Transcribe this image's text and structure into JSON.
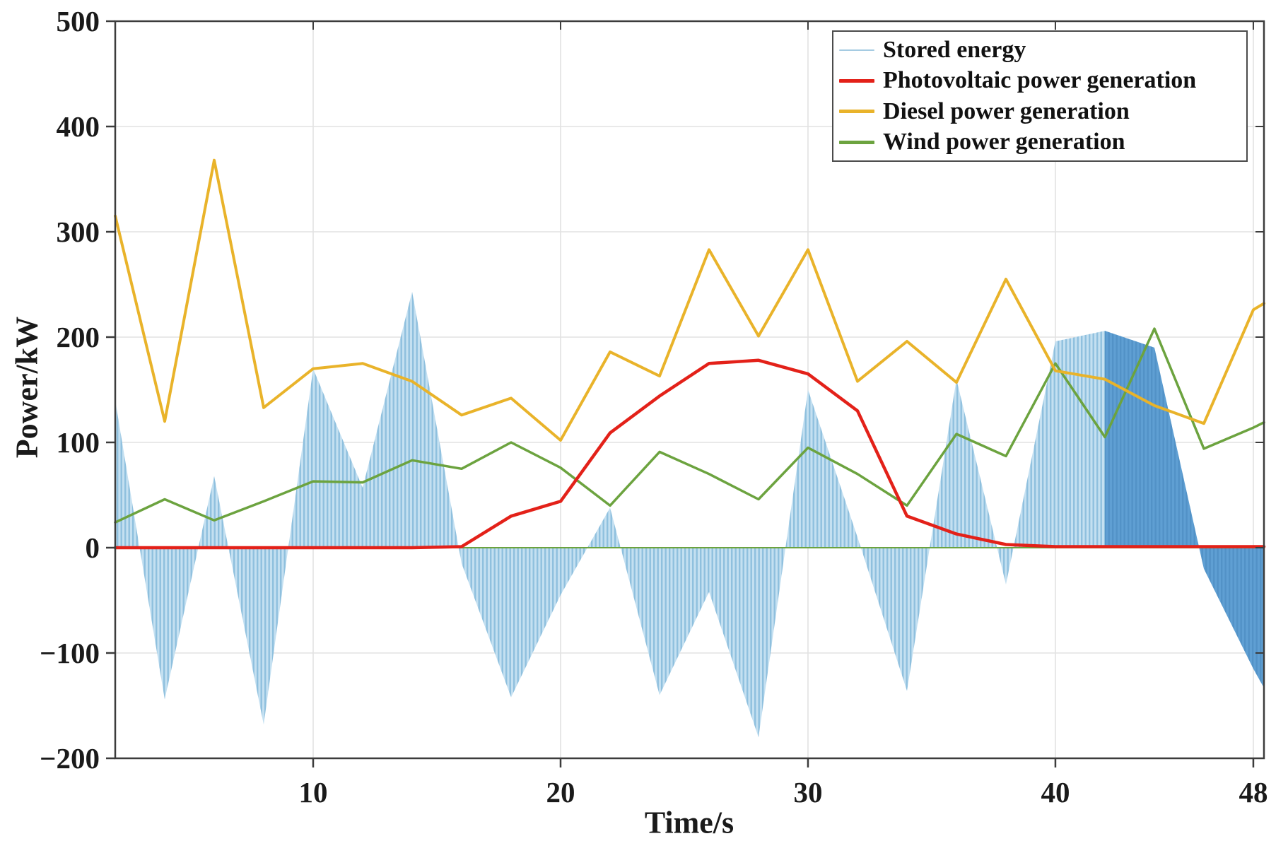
{
  "figure": {
    "xlabel": "Time/s",
    "ylabel": "Power/kW"
  },
  "legend": {
    "items": [
      {
        "label": "Stored energy",
        "color": "#a5cbe2",
        "thickness": 2.5
      },
      {
        "label": "Photovoltaic power generation",
        "color": "#e32119",
        "thickness": 5
      },
      {
        "label": "Diesel power generation",
        "color": "#e9b32a",
        "thickness": 5
      },
      {
        "label": "Wind power generation",
        "color": "#6ca33f",
        "thickness": 5
      }
    ]
  },
  "chart_data": {
    "type": "area-line-combo",
    "title": "",
    "xlabel": "Time/s",
    "ylabel": "Power/kW",
    "xlim": [
      2,
      48.43
    ],
    "ylim": [
      -200,
      500
    ],
    "grid": true,
    "legend_position": "top-right",
    "xticks": [
      {
        "v": 10,
        "label": "10"
      },
      {
        "v": 20,
        "label": "20"
      },
      {
        "v": 30,
        "label": "30"
      },
      {
        "v": 40,
        "label": "40"
      },
      {
        "v": 48,
        "label": "48"
      }
    ],
    "yticks": [
      {
        "v": 500,
        "label": "500"
      },
      {
        "v": 400,
        "label": "400"
      },
      {
        "v": 300,
        "label": "300"
      },
      {
        "v": 200,
        "label": "200"
      },
      {
        "v": 100,
        "label": "100"
      },
      {
        "v": 0,
        "label": "0"
      },
      {
        "v": -100,
        "label": "−100"
      },
      {
        "v": -200,
        "label": "−200"
      }
    ],
    "x": [
      2,
      4,
      6,
      8,
      10,
      12,
      14,
      16,
      18,
      20,
      22,
      24,
      26,
      28,
      30,
      32,
      34,
      36,
      38,
      40,
      42,
      44,
      46,
      48,
      48.43
    ],
    "series": [
      {
        "name": "Stored energy",
        "type": "area",
        "fill": "#c4e0f1",
        "stripe": "#8fc0de",
        "dark_fill": "#5f9fd3",
        "dark_stripe": "#5292c7",
        "dark_regions": [
          [
            42,
            45.81
          ],
          [
            45.81,
            48.43
          ]
        ],
        "values": [
          140,
          -144,
          68,
          -168,
          170,
          57,
          243,
          -15,
          -142,
          -45,
          38,
          -140,
          -42,
          -180,
          150,
          10,
          -136,
          160,
          -35,
          196,
          206,
          190,
          -20,
          -115,
          -133
        ]
      },
      {
        "name": "Wind power generation",
        "type": "line",
        "color": "#6ca33f",
        "width": 3.5,
        "values": [
          24,
          46,
          26,
          44,
          63,
          62,
          83,
          75,
          100,
          76,
          40,
          91,
          70,
          46,
          95,
          70,
          40,
          108,
          87,
          175,
          105,
          208,
          94,
          114,
          119
        ]
      },
      {
        "name": "Diesel power generation",
        "type": "line",
        "color": "#e9b32a",
        "width": 4,
        "values": [
          315,
          120,
          368,
          133,
          170,
          175,
          158,
          126,
          142,
          102,
          186,
          163,
          283,
          201,
          283,
          158,
          196,
          157,
          255,
          168,
          160,
          135,
          118,
          226,
          232
        ]
      },
      {
        "name": "Photovoltaic power generation",
        "type": "line",
        "color": "#e32119",
        "width": 4.5,
        "values": [
          0,
          0,
          0,
          0,
          0,
          0,
          0,
          1,
          30,
          44,
          109,
          144,
          175,
          178,
          165,
          130,
          30,
          13,
          3,
          1,
          1,
          1,
          1,
          1,
          1
        ]
      }
    ],
    "baseline": {
      "y": 0,
      "color": "#6ca33f",
      "width": 2
    }
  }
}
